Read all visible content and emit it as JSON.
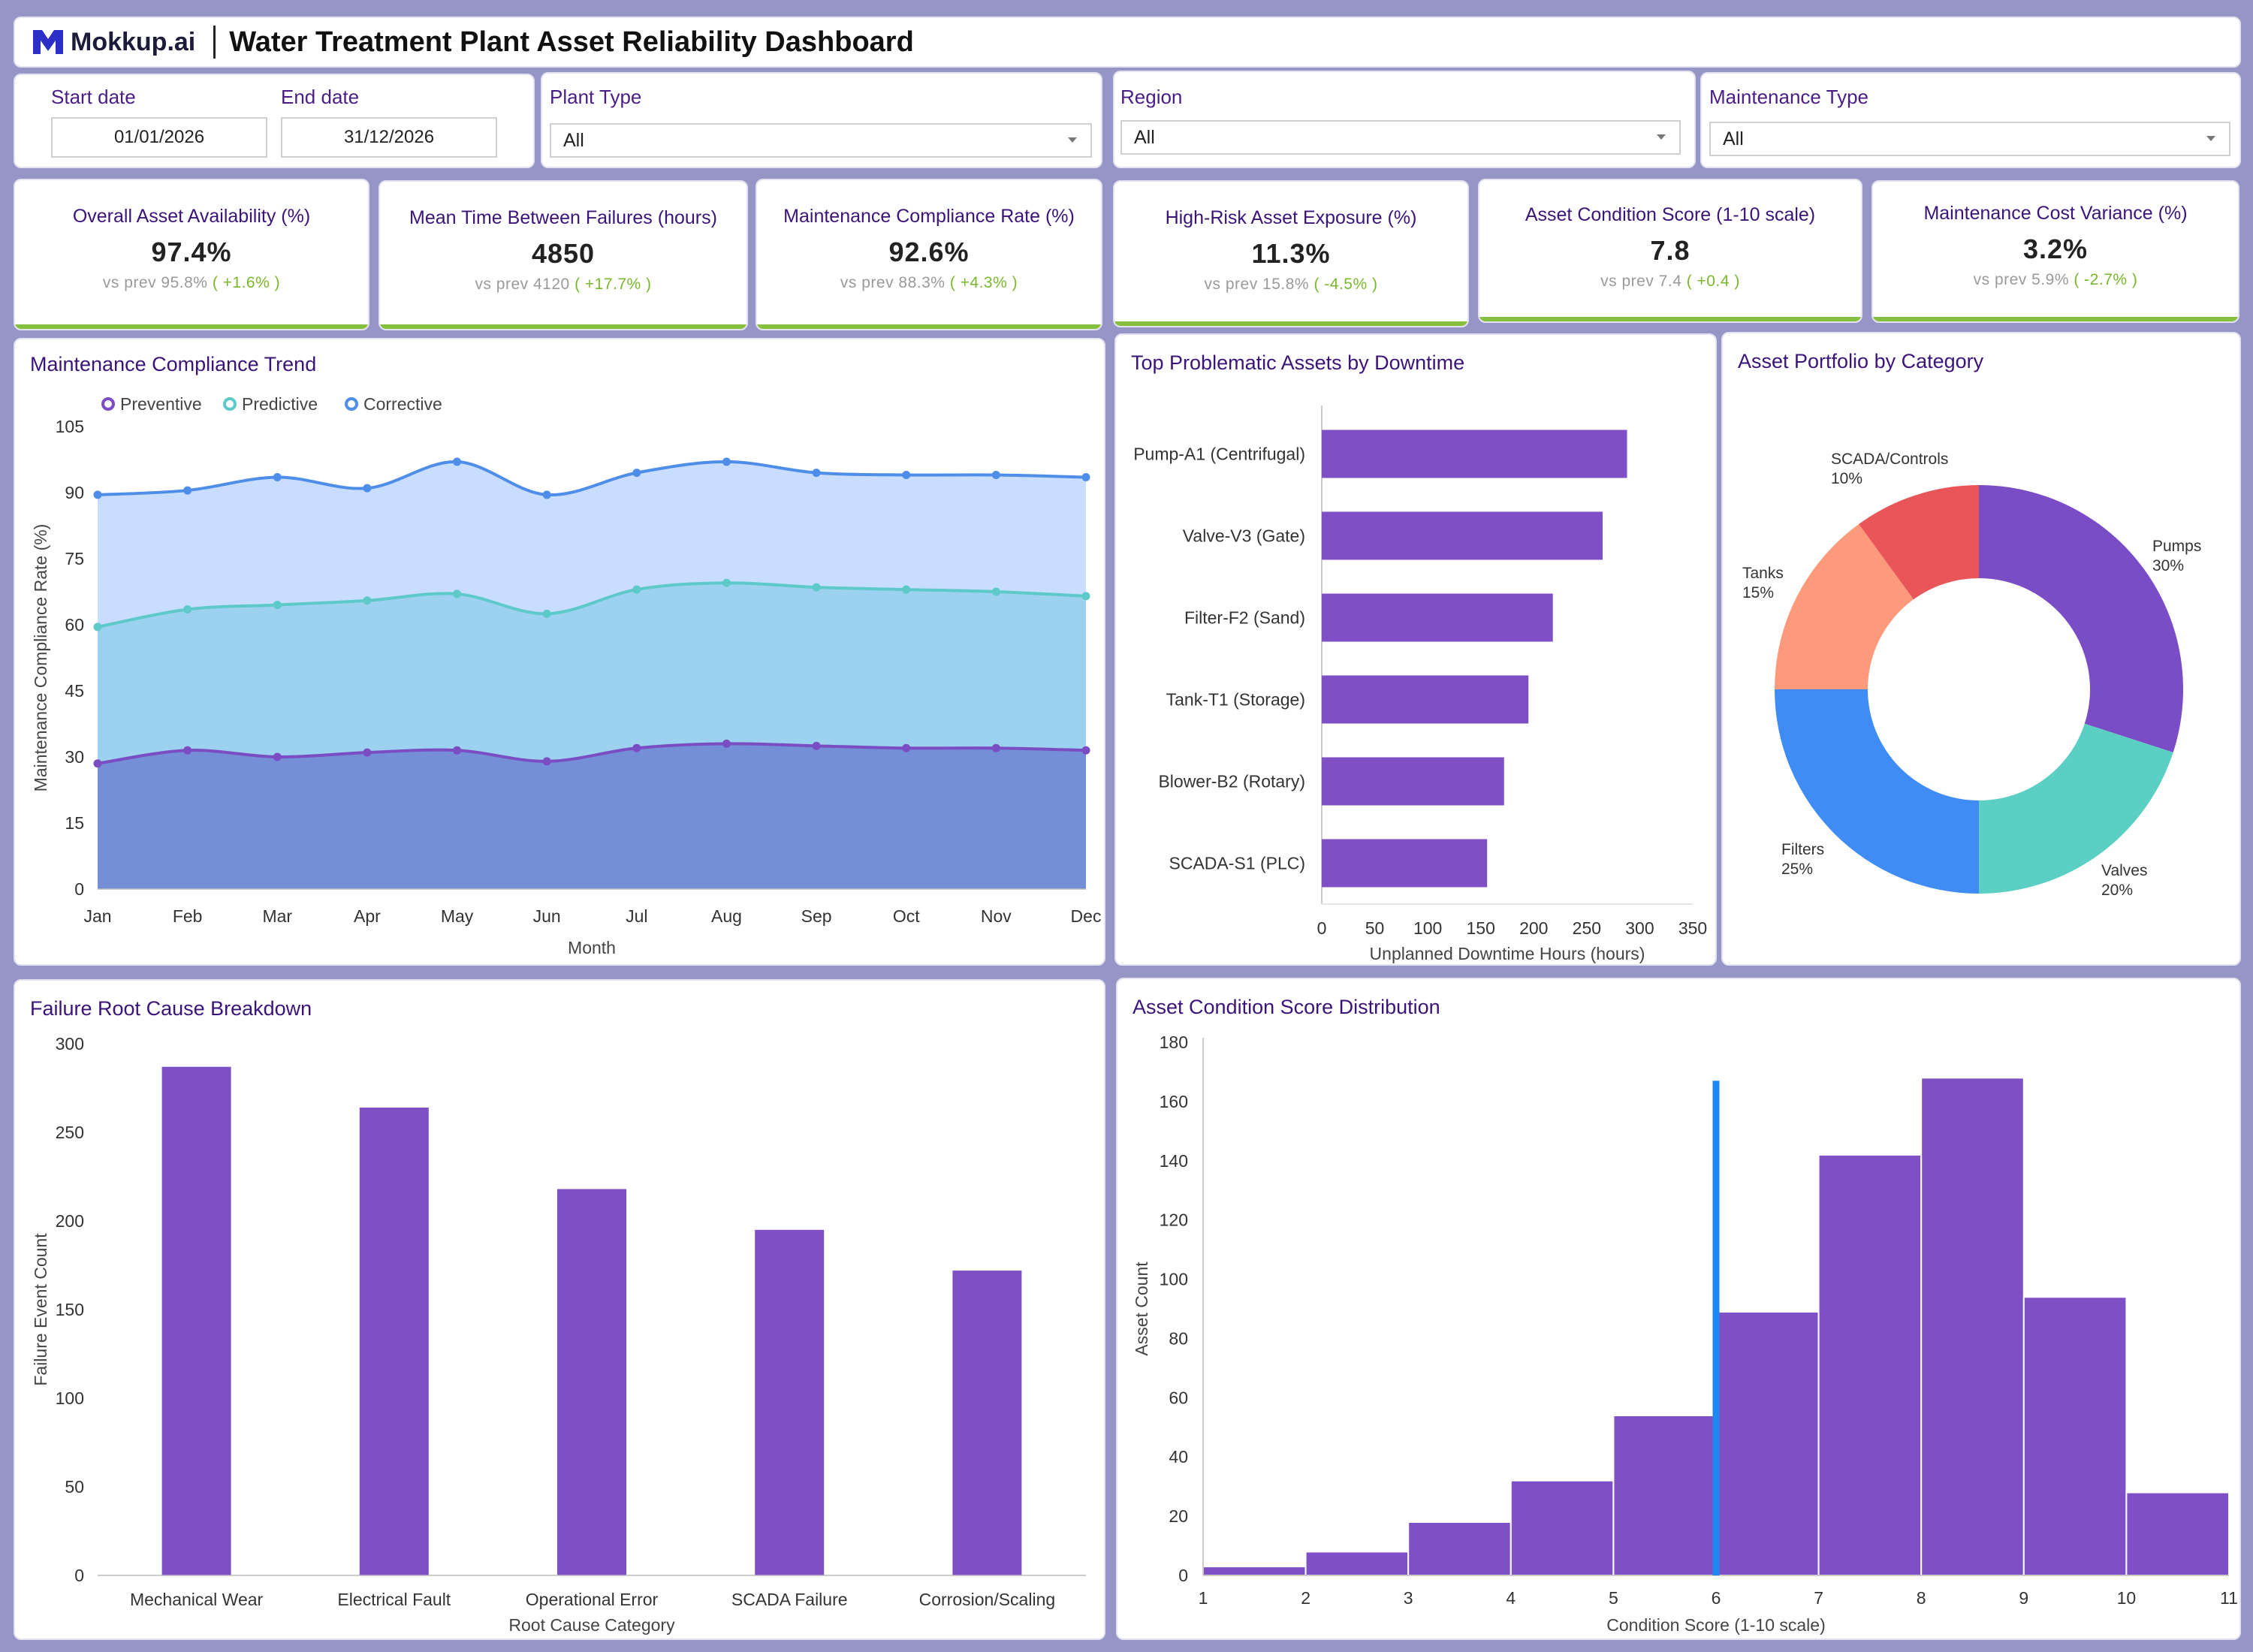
{
  "header": {
    "logo_text": "Mokkup.ai",
    "title": "Water Treatment Plant Asset Reliability Dashboard"
  },
  "filters": {
    "start_date": {
      "label": "Start date",
      "value": "01/01/2026"
    },
    "end_date": {
      "label": "End date",
      "value": "31/12/2026"
    },
    "plant_type": {
      "label": "Plant Type",
      "value": "All"
    },
    "region": {
      "label": "Region",
      "value": "All"
    },
    "maintenance_type": {
      "label": "Maintenance Type",
      "value": "All"
    }
  },
  "kpis": [
    {
      "title": "Overall Asset Availability (%)",
      "value": "97.4%",
      "prev": "vs prev 95.8%",
      "delta": "( +1.6% )"
    },
    {
      "title": "Mean Time Between Failures (hours)",
      "value": "4850",
      "prev": "vs prev 4120",
      "delta": "( +17.7% )"
    },
    {
      "title": "Maintenance Compliance Rate (%)",
      "value": "92.6%",
      "prev": "vs prev 88.3%",
      "delta": "( +4.3% )"
    },
    {
      "title": "High-Risk Asset Exposure (%)",
      "value": "11.3%",
      "prev": "vs prev 15.8%",
      "delta": "( -4.5% )"
    },
    {
      "title": "Asset Condition Score (1-10 scale)",
      "value": "7.8",
      "prev": "vs prev 7.4",
      "delta": "( +0.4 )"
    },
    {
      "title": "Maintenance Cost Variance (%)",
      "value": "3.2%",
      "prev": "vs prev 5.9%",
      "delta": "( -2.7% )"
    }
  ],
  "colors": {
    "accent_purple": "#7f4fc6",
    "kpi_bar": "#86bf3d",
    "preventive": "#7a4ec2",
    "predictive": "#5dc9c9",
    "corrective": "#4e8ee8",
    "pumps": "#7a4cc5",
    "valves": "#5ccfc4",
    "filters": "#3f8cf5",
    "tanks": "#fd9a7c",
    "scada": "#e9565a",
    "median_line": "#1e88f0"
  },
  "chart_data": [
    {
      "id": "compliance_trend",
      "type": "area",
      "title": "Maintenance Compliance Trend",
      "xlabel": "Month",
      "ylabel": "Maintenance Compliance Rate (%)",
      "ylim": [
        0,
        105
      ],
      "yticks": [
        0,
        15,
        30,
        45,
        60,
        75,
        90,
        105
      ],
      "legend": "top-left",
      "categories": [
        "Jan",
        "Feb",
        "Mar",
        "Apr",
        "May",
        "Jun",
        "Jul",
        "Aug",
        "Sep",
        "Oct",
        "Nov",
        "Dec"
      ],
      "series": [
        {
          "name": "Preventive",
          "values": [
            28.5,
            31.5,
            30,
            31,
            31.5,
            29,
            32,
            33,
            32.5,
            32,
            32,
            31.5
          ]
        },
        {
          "name": "Predictive",
          "values": [
            59.5,
            63.5,
            64.5,
            65.5,
            67,
            62.5,
            68,
            69.5,
            68.5,
            68,
            67.5,
            66.5
          ]
        },
        {
          "name": "Corrective",
          "values": [
            89.5,
            90.5,
            93.5,
            91,
            97,
            89.5,
            94.5,
            97,
            94.5,
            94,
            94,
            93.5
          ]
        }
      ]
    },
    {
      "id": "top_assets",
      "type": "bar",
      "title": "Top Problematic Assets by Downtime",
      "xlabel": "Unplanned Downtime Hours (hours)",
      "ylabel": "",
      "xlim": [
        0,
        350
      ],
      "xticks": [
        0,
        50,
        100,
        150,
        200,
        250,
        300,
        350
      ],
      "categories": [
        "Pump-A1 (Centrifugal)",
        "Valve-V3 (Gate)",
        "Filter-F2 (Sand)",
        "Tank-T1 (Storage)",
        "Blower-B2 (Rotary)",
        "SCADA-S1 (PLC)"
      ],
      "values": [
        288,
        265,
        218,
        195,
        172,
        156
      ]
    },
    {
      "id": "portfolio",
      "type": "pie",
      "title": "Asset Portfolio by Category",
      "categories": [
        "Pumps",
        "Valves",
        "Filters",
        "Tanks",
        "SCADA/Controls"
      ],
      "values": [
        30,
        20,
        25,
        15,
        10
      ],
      "labels": [
        "30%",
        "20%",
        "25%",
        "15%",
        "10%"
      ]
    },
    {
      "id": "root_cause",
      "type": "bar",
      "title": "Failure Root Cause Breakdown",
      "xlabel": "Root Cause Category",
      "ylabel": "Failure Event Count",
      "ylim": [
        0,
        300
      ],
      "yticks": [
        0,
        50,
        100,
        150,
        200,
        250,
        300
      ],
      "categories": [
        "Mechanical Wear",
        "Electrical Fault",
        "Operational Error",
        "SCADA Failure",
        "Corrosion/Scaling"
      ],
      "values": [
        287,
        264,
        218,
        195,
        172
      ]
    },
    {
      "id": "condition_hist",
      "type": "bar",
      "title": "Asset Condition Score Distribution",
      "xlabel": "Condition Score (1-10 scale)",
      "ylabel": "Asset Count",
      "xlim": [
        1,
        11
      ],
      "xticks": [
        1,
        2,
        3,
        4,
        5,
        6,
        7,
        8,
        9,
        10,
        11
      ],
      "ylim": [
        0,
        180
      ],
      "yticks": [
        0,
        20,
        40,
        60,
        80,
        100,
        120,
        140,
        160,
        180
      ],
      "bins": [
        1,
        2,
        3,
        4,
        5,
        6,
        7,
        8,
        9,
        10
      ],
      "values": [
        3,
        8,
        18,
        32,
        54,
        89,
        142,
        168,
        94,
        28
      ],
      "reference_line": 6
    }
  ]
}
